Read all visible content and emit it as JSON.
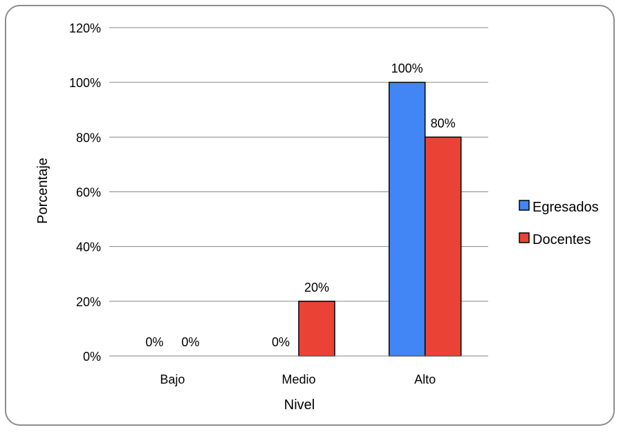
{
  "chart_data": {
    "type": "bar",
    "categories": [
      "Bajo",
      "Medio",
      "Alto"
    ],
    "series": [
      {
        "name": "Egresados",
        "values": [
          0,
          0,
          100
        ],
        "color": "#4285f4",
        "labels": [
          "0%",
          "0%",
          "100%"
        ]
      },
      {
        "name": "Docentes",
        "values": [
          0,
          20,
          80
        ],
        "color": "#ea4335",
        "labels": [
          "0%",
          "20%",
          "80%"
        ]
      }
    ],
    "xlabel": "Nivel",
    "ylabel": "Porcentaje",
    "ylim": [
      0,
      120
    ],
    "yticks": [
      0,
      20,
      40,
      60,
      80,
      100,
      120
    ],
    "ytick_labels": [
      "0%",
      "20%",
      "40%",
      "60%",
      "80%",
      "100%",
      "120%"
    ],
    "grid": true,
    "legend": "right"
  }
}
